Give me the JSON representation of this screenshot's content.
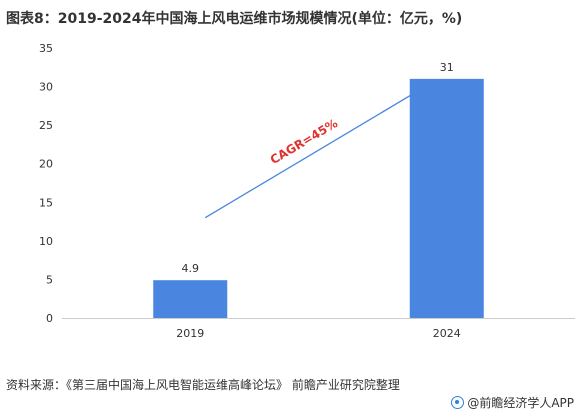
{
  "title": "图表8：2019-2024年中国海上风电运维市场规模情况(单位：亿元，%)",
  "source": "资料来源：《第三届中国海上风电智能运维高峰论坛》 前瞻产业研究院整理",
  "brand": "@前瞻经济学人APP",
  "colors": {
    "bar": "#4a86e0",
    "arrow": "#4a86e0",
    "annotation": "#e0322c"
  },
  "chart_data": {
    "type": "bar",
    "categories": [
      "2019",
      "2024"
    ],
    "values": [
      4.9,
      31
    ],
    "data_labels": [
      "4.9",
      "31"
    ],
    "ylim": [
      0,
      35
    ],
    "yticks": [
      0,
      5,
      10,
      15,
      20,
      25,
      30,
      35
    ],
    "grid": false,
    "legend": "none",
    "annotation": {
      "text": "CAGR=45%",
      "arrow": true
    }
  }
}
